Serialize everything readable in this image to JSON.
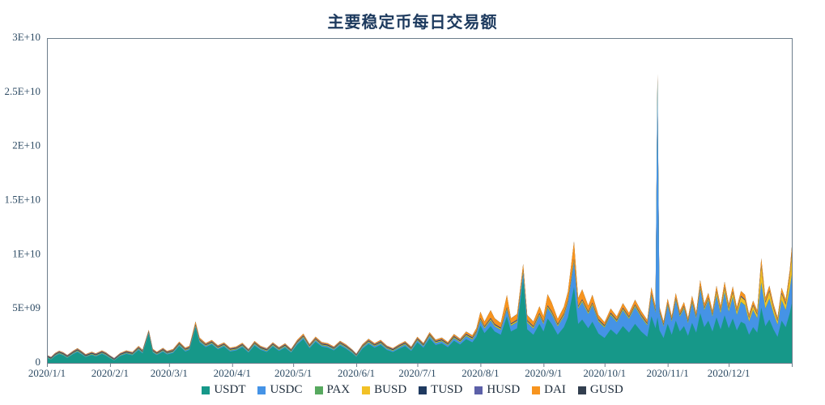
{
  "page": {
    "title": "主要稳定币每日交易额"
  },
  "chart_data": {
    "type": "area",
    "stacked": true,
    "title": "主要稳定币每日交易额",
    "grid": false,
    "legend_position": "bottom",
    "unit": "daily volume in USD; series values below are in billions (1e9)",
    "ylim_billions": [
      0,
      30
    ],
    "y_ticks": [
      {
        "label": "0",
        "value": 0
      },
      {
        "label": "5E+09",
        "value": 5
      },
      {
        "label": "1E+10",
        "value": 10
      },
      {
        "label": "1.5E+10",
        "value": 15
      },
      {
        "label": "2E+10",
        "value": 20
      },
      {
        "label": "2.5E+10",
        "value": 25
      },
      {
        "label": "3E+10",
        "value": 30
      }
    ],
    "x_max_day": 366,
    "x_ticks": [
      {
        "label": "2020/1/1",
        "day": 0
      },
      {
        "label": "2020/2/1",
        "day": 31
      },
      {
        "label": "2020/3/1",
        "day": 60
      },
      {
        "label": "2020/4/1",
        "day": 91
      },
      {
        "label": "2020/5/1",
        "day": 121
      },
      {
        "label": "2020/6/1",
        "day": 152
      },
      {
        "label": "2020/7/1",
        "day": 182
      },
      {
        "label": "2020/8/1",
        "day": 213
      },
      {
        "label": "2020/9/1",
        "day": 244
      },
      {
        "label": "2020/10/1",
        "day": 274
      },
      {
        "label": "2020/11/1",
        "day": 305
      },
      {
        "label": "2020/12/1",
        "day": 335
      },
      {
        "label": "",
        "day": 366
      }
    ],
    "days": [
      0,
      2,
      4,
      6,
      8,
      10,
      13,
      15,
      17,
      19,
      22,
      24,
      27,
      29,
      31,
      33,
      36,
      39,
      42,
      45,
      47,
      50,
      52,
      54,
      57,
      59,
      62,
      65,
      68,
      70,
      73,
      75,
      78,
      81,
      84,
      87,
      90,
      93,
      96,
      99,
      102,
      105,
      108,
      111,
      114,
      117,
      120,
      123,
      126,
      129,
      132,
      135,
      138,
      141,
      144,
      147,
      150,
      152,
      155,
      158,
      161,
      164,
      167,
      170,
      173,
      176,
      179,
      182,
      185,
      188,
      191,
      194,
      197,
      200,
      203,
      206,
      209,
      211,
      213,
      215,
      218,
      220,
      223,
      226,
      228,
      231,
      234,
      236,
      239,
      242,
      244,
      246,
      248,
      251,
      254,
      256,
      259,
      261,
      263,
      266,
      268,
      271,
      274,
      277,
      280,
      283,
      286,
      289,
      292,
      295,
      297,
      299,
      300,
      301,
      303,
      305,
      307,
      309,
      311,
      313,
      315,
      317,
      319,
      321,
      323,
      325,
      327,
      329,
      331,
      333,
      335,
      337,
      339,
      341,
      343,
      345,
      347,
      349,
      351,
      353,
      355,
      357,
      359,
      361,
      363,
      365,
      366
    ],
    "series": [
      {
        "name": "USDT",
        "color": "#169889",
        "values": [
          0.45,
          0.3,
          0.62,
          0.8,
          0.68,
          0.45,
          0.82,
          1.0,
          0.78,
          0.52,
          0.72,
          0.58,
          0.82,
          0.66,
          0.42,
          0.22,
          0.62,
          0.82,
          0.7,
          1.18,
          0.88,
          2.65,
          0.95,
          0.72,
          1.02,
          0.78,
          0.92,
          1.55,
          1.05,
          1.2,
          3.25,
          1.9,
          1.45,
          1.7,
          1.25,
          1.5,
          1.05,
          1.15,
          1.45,
          0.95,
          1.6,
          1.2,
          1.0,
          1.5,
          1.1,
          1.4,
          0.95,
          1.7,
          2.2,
          1.35,
          1.95,
          1.5,
          1.4,
          1.15,
          1.6,
          1.3,
          0.9,
          0.55,
          1.3,
          1.75,
          1.4,
          1.65,
          1.2,
          1.0,
          1.3,
          1.55,
          1.1,
          1.9,
          1.4,
          2.25,
          1.65,
          1.8,
          1.45,
          2.05,
          1.7,
          2.2,
          1.9,
          2.4,
          3.45,
          2.75,
          3.4,
          2.9,
          2.6,
          4.3,
          2.9,
          3.2,
          7.8,
          3.1,
          2.6,
          3.6,
          2.9,
          4.1,
          3.6,
          2.6,
          3.3,
          4.2,
          7.0,
          3.6,
          4.0,
          3.2,
          3.8,
          2.7,
          2.3,
          3.1,
          2.6,
          3.4,
          2.8,
          3.6,
          2.9,
          2.4,
          4.3,
          3.2,
          4.2,
          3.0,
          2.3,
          3.6,
          2.6,
          3.9,
          2.9,
          3.4,
          2.5,
          3.7,
          2.8,
          4.6,
          3.3,
          3.9,
          2.9,
          4.2,
          3.1,
          4.4,
          3.2,
          4.1,
          3.0,
          3.8,
          3.6,
          2.6,
          3.3,
          2.8,
          5.1,
          3.4,
          4.0,
          3.1,
          2.4,
          3.9,
          3.3,
          4.6,
          5.5
        ]
      },
      {
        "name": "USDC",
        "color": "#4593e6",
        "values": [
          0.04,
          0.03,
          0.05,
          0.06,
          0.05,
          0.04,
          0.06,
          0.07,
          0.06,
          0.04,
          0.05,
          0.05,
          0.06,
          0.05,
          0.04,
          0.02,
          0.05,
          0.06,
          0.05,
          0.08,
          0.06,
          0.09,
          0.07,
          0.05,
          0.07,
          0.06,
          0.07,
          0.09,
          0.07,
          0.08,
          0.12,
          0.1,
          0.08,
          0.09,
          0.08,
          0.09,
          0.07,
          0.08,
          0.09,
          0.07,
          0.1,
          0.08,
          0.07,
          0.09,
          0.08,
          0.09,
          0.07,
          0.11,
          0.13,
          0.09,
          0.12,
          0.1,
          0.1,
          0.08,
          0.11,
          0.09,
          0.07,
          0.05,
          0.1,
          0.13,
          0.11,
          0.13,
          0.1,
          0.09,
          0.11,
          0.13,
          0.1,
          0.16,
          0.13,
          0.2,
          0.16,
          0.18,
          0.15,
          0.22,
          0.19,
          0.26,
          0.24,
          0.3,
          0.45,
          0.4,
          0.5,
          0.45,
          0.42,
          0.6,
          0.5,
          0.55,
          0.5,
          0.6,
          0.55,
          0.75,
          0.65,
          0.95,
          0.9,
          0.75,
          1.0,
          1.3,
          2.3,
          1.4,
          1.6,
          1.3,
          1.5,
          1.1,
          0.95,
          1.3,
          1.15,
          1.45,
          1.25,
          1.55,
          1.3,
          1.05,
          1.9,
          1.4,
          21.8,
          1.6,
          1.05,
          1.7,
          1.2,
          1.85,
          1.35,
          1.6,
          1.15,
          1.8,
          1.3,
          2.2,
          1.55,
          1.85,
          1.35,
          2.0,
          1.45,
          2.1,
          1.5,
          1.95,
          1.4,
          1.8,
          1.7,
          1.2,
          1.55,
          1.3,
          2.3,
          1.6,
          1.9,
          1.45,
          1.1,
          1.85,
          1.55,
          2.2,
          2.6
        ]
      },
      {
        "name": "PAX",
        "color": "#57a95f",
        "values": 0.05
      },
      {
        "name": "BUSD",
        "color": "#f2c126",
        "values": [
          0.02,
          0.02,
          0.03,
          0.03,
          0.03,
          0.02,
          0.03,
          0.04,
          0.03,
          0.02,
          0.03,
          0.03,
          0.03,
          0.03,
          0.02,
          0.01,
          0.03,
          0.03,
          0.03,
          0.04,
          0.03,
          0.04,
          0.03,
          0.03,
          0.04,
          0.03,
          0.04,
          0.05,
          0.04,
          0.04,
          0.06,
          0.05,
          0.04,
          0.05,
          0.04,
          0.04,
          0.04,
          0.04,
          0.05,
          0.03,
          0.05,
          0.04,
          0.04,
          0.05,
          0.04,
          0.05,
          0.04,
          0.05,
          0.06,
          0.05,
          0.06,
          0.05,
          0.05,
          0.04,
          0.05,
          0.05,
          0.04,
          0.03,
          0.05,
          0.06,
          0.05,
          0.06,
          0.05,
          0.04,
          0.05,
          0.06,
          0.05,
          0.06,
          0.05,
          0.07,
          0.06,
          0.06,
          0.06,
          0.07,
          0.06,
          0.08,
          0.08,
          0.09,
          0.1,
          0.09,
          0.1,
          0.1,
          0.09,
          0.1,
          0.1,
          0.1,
          0.12,
          0.1,
          0.1,
          0.11,
          0.1,
          0.12,
          0.12,
          0.1,
          0.12,
          0.13,
          0.15,
          0.12,
          0.13,
          0.11,
          0.12,
          0.1,
          0.09,
          0.1,
          0.09,
          0.11,
          0.1,
          0.11,
          0.1,
          0.09,
          0.12,
          0.1,
          0.12,
          0.1,
          0.09,
          0.12,
          0.1,
          0.13,
          0.11,
          0.12,
          0.1,
          0.14,
          0.11,
          0.18,
          0.13,
          0.15,
          0.12,
          0.3,
          0.22,
          0.35,
          0.25,
          0.4,
          0.28,
          0.45,
          0.42,
          0.28,
          0.38,
          0.3,
          1.45,
          0.5,
          0.65,
          0.42,
          0.3,
          0.6,
          0.48,
          1.1,
          1.75
        ]
      },
      {
        "name": "TUSD",
        "color": "#1f3a60",
        "values": 0.06
      },
      {
        "name": "HUSD",
        "color": "#5c60a8",
        "values": 0.05
      },
      {
        "name": "DAI",
        "color": "#f7941e",
        "values": [
          0.04,
          0.03,
          0.05,
          0.06,
          0.05,
          0.04,
          0.06,
          0.07,
          0.06,
          0.05,
          0.06,
          0.05,
          0.07,
          0.06,
          0.04,
          0.03,
          0.05,
          0.07,
          0.06,
          0.09,
          0.07,
          0.1,
          0.08,
          0.06,
          0.08,
          0.06,
          0.08,
          0.1,
          0.08,
          0.09,
          0.22,
          0.12,
          0.09,
          0.1,
          0.08,
          0.09,
          0.07,
          0.08,
          0.09,
          0.06,
          0.1,
          0.08,
          0.07,
          0.09,
          0.07,
          0.09,
          0.06,
          0.11,
          0.14,
          0.09,
          0.12,
          0.1,
          0.09,
          0.08,
          0.1,
          0.09,
          0.06,
          0.05,
          0.09,
          0.11,
          0.09,
          0.11,
          0.08,
          0.07,
          0.09,
          0.1,
          0.08,
          0.12,
          0.09,
          0.14,
          0.11,
          0.12,
          0.1,
          0.15,
          0.12,
          0.18,
          0.16,
          0.25,
          0.55,
          0.4,
          0.7,
          0.5,
          0.4,
          1.1,
          0.45,
          0.5,
          0.55,
          0.45,
          0.4,
          0.6,
          0.5,
          1.0,
          0.8,
          0.45,
          0.6,
          0.8,
          1.6,
          0.7,
          0.9,
          0.5,
          0.7,
          0.35,
          0.25,
          0.35,
          0.28,
          0.38,
          0.3,
          0.4,
          0.32,
          0.25,
          0.5,
          0.35,
          0.4,
          0.3,
          0.22,
          0.35,
          0.25,
          0.4,
          0.28,
          0.33,
          0.24,
          0.4,
          0.28,
          0.5,
          0.33,
          0.4,
          0.28,
          0.45,
          0.32,
          0.48,
          0.33,
          0.45,
          0.3,
          0.42,
          0.4,
          0.26,
          0.35,
          0.28,
          0.65,
          0.36,
          0.42,
          0.32,
          0.24,
          0.42,
          0.35,
          0.5,
          0.7
        ]
      },
      {
        "name": "GUSD",
        "color": "#323f4f",
        "values": 0.012
      }
    ],
    "annotations": [
      {
        "text": "narrow USDC-dominated spike ~2.65E+10 around 2020/10/26",
        "day": 300
      },
      {
        "text": "USDT spike ~9E+09 around 2020/8/21",
        "day": 234
      },
      {
        "text": "peak ~1.1E+10 with DAI cap around 2020/9/15",
        "day": 259
      }
    ]
  }
}
